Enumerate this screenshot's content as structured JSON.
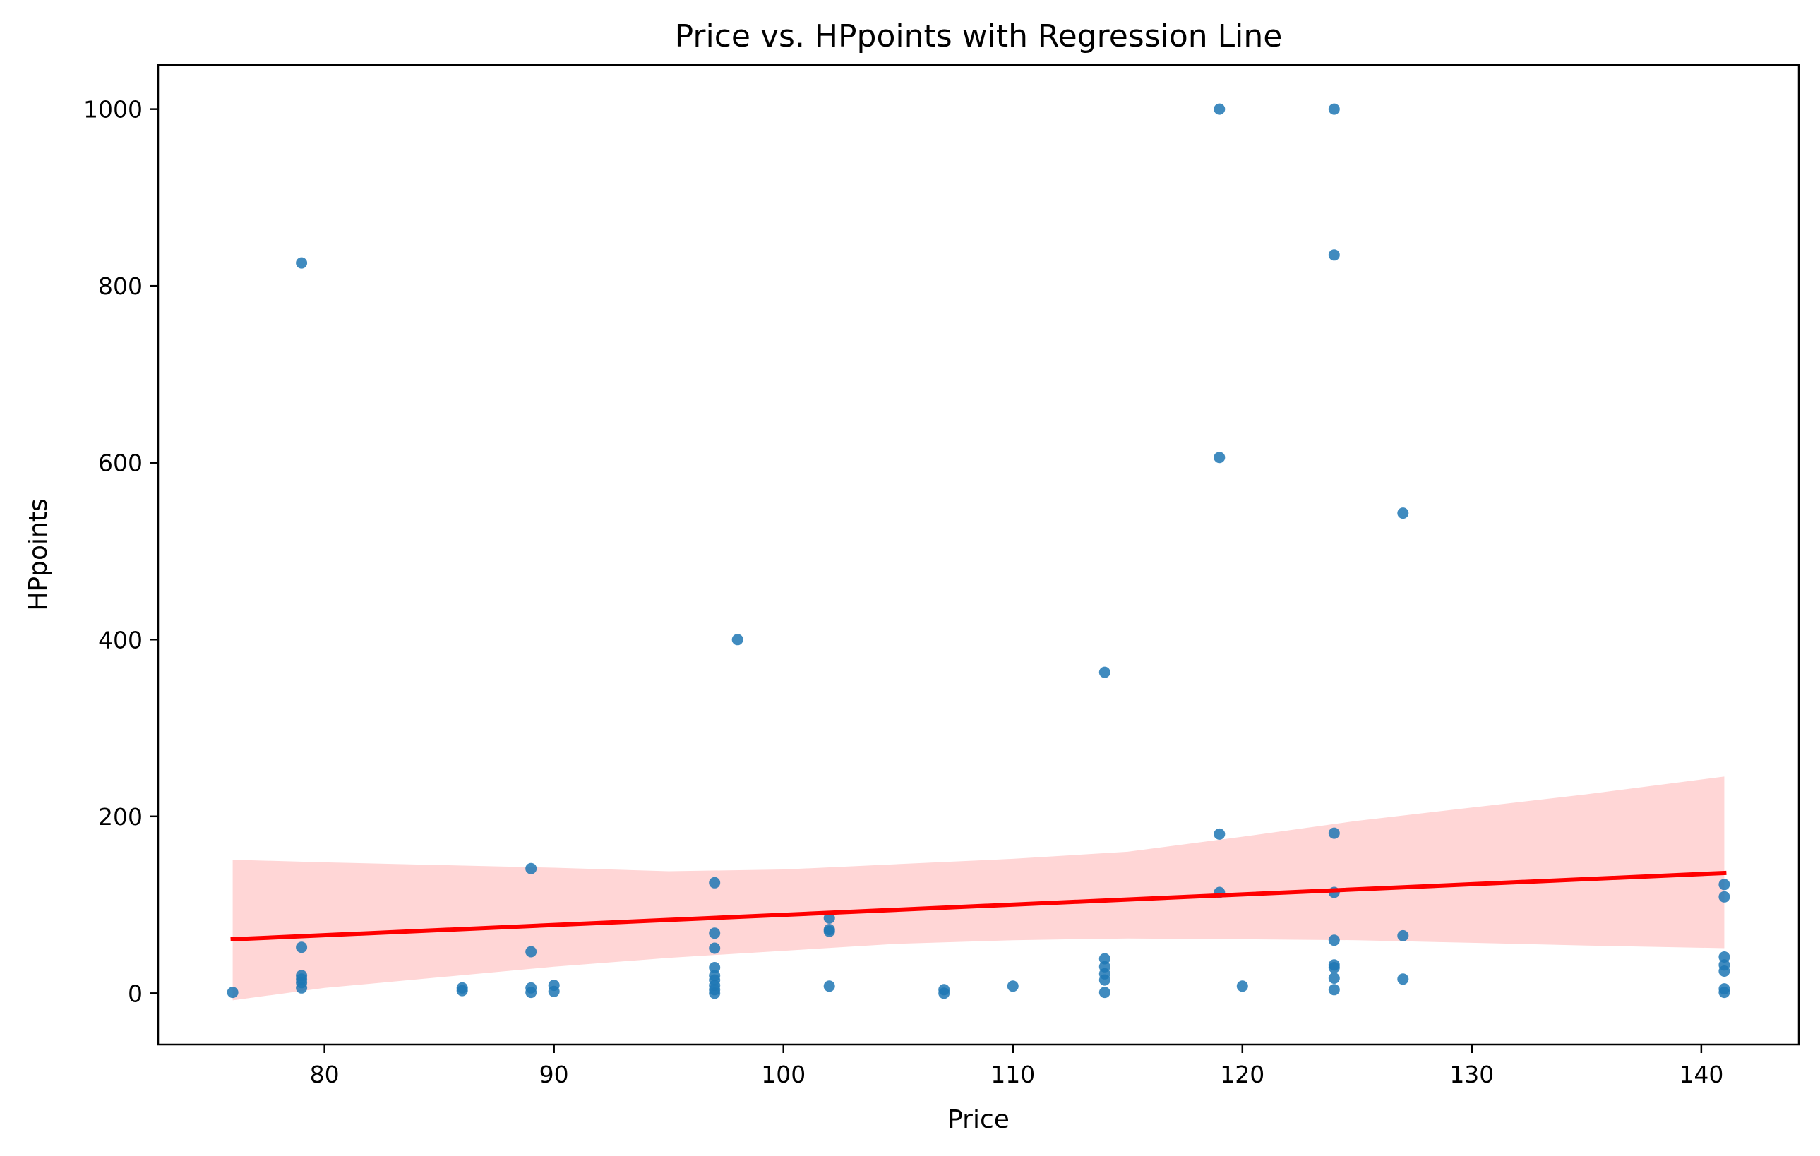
{
  "chart_data": {
    "type": "scatter",
    "title": "Price vs. HPpoints with Regression Line",
    "xlabel": "Price",
    "ylabel": "HPpoints",
    "xlim": [
      72.75,
      144.25
    ],
    "ylim": [
      -58,
      1050
    ],
    "xticks": [
      80,
      90,
      100,
      110,
      120,
      130,
      140
    ],
    "yticks": [
      0,
      200,
      400,
      600,
      800,
      1000
    ],
    "grid": false,
    "legend": "none",
    "colors": {
      "points": "#1f77b4",
      "regression_line": "#ff0000",
      "confidence_band": "#ffd6d6"
    },
    "points": [
      {
        "x": 76,
        "y": 1
      },
      {
        "x": 79,
        "y": 826
      },
      {
        "x": 79,
        "y": 52
      },
      {
        "x": 79,
        "y": 20
      },
      {
        "x": 79,
        "y": 16
      },
      {
        "x": 79,
        "y": 12
      },
      {
        "x": 79,
        "y": 6
      },
      {
        "x": 86,
        "y": 6
      },
      {
        "x": 86,
        "y": 3
      },
      {
        "x": 89,
        "y": 141
      },
      {
        "x": 89,
        "y": 47
      },
      {
        "x": 89,
        "y": 6
      },
      {
        "x": 89,
        "y": 1
      },
      {
        "x": 90,
        "y": 9
      },
      {
        "x": 90,
        "y": 2
      },
      {
        "x": 97,
        "y": 125
      },
      {
        "x": 97,
        "y": 68
      },
      {
        "x": 97,
        "y": 51
      },
      {
        "x": 97,
        "y": 29
      },
      {
        "x": 97,
        "y": 20
      },
      {
        "x": 97,
        "y": 15
      },
      {
        "x": 97,
        "y": 9
      },
      {
        "x": 97,
        "y": 4
      },
      {
        "x": 97,
        "y": 0
      },
      {
        "x": 98,
        "y": 400
      },
      {
        "x": 102,
        "y": 85
      },
      {
        "x": 102,
        "y": 72
      },
      {
        "x": 102,
        "y": 70
      },
      {
        "x": 102,
        "y": 8
      },
      {
        "x": 107,
        "y": 4
      },
      {
        "x": 107,
        "y": 0
      },
      {
        "x": 110,
        "y": 8
      },
      {
        "x": 114,
        "y": 363
      },
      {
        "x": 114,
        "y": 39
      },
      {
        "x": 114,
        "y": 30
      },
      {
        "x": 114,
        "y": 22
      },
      {
        "x": 114,
        "y": 15
      },
      {
        "x": 114,
        "y": 1
      },
      {
        "x": 119,
        "y": 1000
      },
      {
        "x": 119,
        "y": 606
      },
      {
        "x": 119,
        "y": 180
      },
      {
        "x": 119,
        "y": 114
      },
      {
        "x": 120,
        "y": 8
      },
      {
        "x": 124,
        "y": 1000
      },
      {
        "x": 124,
        "y": 835
      },
      {
        "x": 124,
        "y": 181
      },
      {
        "x": 124,
        "y": 114
      },
      {
        "x": 124,
        "y": 60
      },
      {
        "x": 124,
        "y": 32
      },
      {
        "x": 124,
        "y": 29
      },
      {
        "x": 124,
        "y": 17
      },
      {
        "x": 124,
        "y": 4
      },
      {
        "x": 127,
        "y": 543
      },
      {
        "x": 127,
        "y": 65
      },
      {
        "x": 127,
        "y": 16
      },
      {
        "x": 141,
        "y": 123
      },
      {
        "x": 141,
        "y": 109
      },
      {
        "x": 141,
        "y": 41
      },
      {
        "x": 141,
        "y": 32
      },
      {
        "x": 141,
        "y": 25
      },
      {
        "x": 141,
        "y": 5
      },
      {
        "x": 141,
        "y": 1
      }
    ],
    "regression": {
      "x": [
        76,
        141
      ],
      "y": [
        61,
        136
      ]
    },
    "confidence_band": {
      "x": [
        76,
        80,
        85,
        90,
        95,
        100,
        105,
        110,
        115,
        120,
        125,
        130,
        135,
        141
      ],
      "upper": [
        151,
        148,
        145,
        142,
        138,
        140,
        146,
        152,
        160,
        177,
        195,
        210,
        225,
        245
      ],
      "lower": [
        -8,
        6,
        18,
        30,
        40,
        48,
        56,
        60,
        62,
        61,
        60,
        57,
        54,
        51
      ]
    }
  }
}
